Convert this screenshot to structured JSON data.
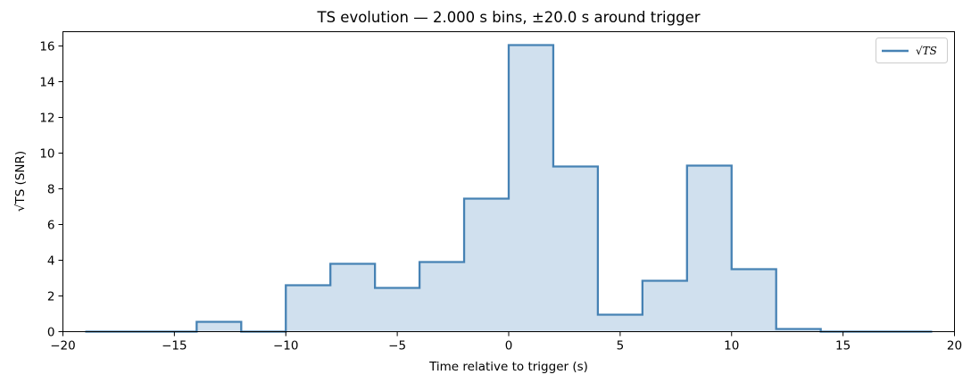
{
  "chart_data": {
    "type": "area",
    "title": "TS evolution — 2.000 s bins, ±20.0 s around trigger",
    "xlabel": "Time relative to trigger  (s)",
    "ylabel": "√TS  (SNR)",
    "xlim": [
      -20,
      20
    ],
    "ylim": [
      0,
      16.8
    ],
    "x_ticks": [
      -20,
      -15,
      -10,
      -5,
      0,
      5,
      10,
      15,
      20
    ],
    "x_tick_labels": [
      "−20",
      "−15",
      "−10",
      "−5",
      "0",
      "5",
      "10",
      "15",
      "20"
    ],
    "y_ticks": [
      0,
      2,
      4,
      6,
      8,
      10,
      12,
      14,
      16
    ],
    "y_tick_labels": [
      "0",
      "2",
      "4",
      "6",
      "8",
      "10",
      "12",
      "14",
      "16"
    ],
    "grid": false,
    "legend_position": "top-right",
    "series": [
      {
        "name": "√TS",
        "color": "#4682b4",
        "fill_color": "#d0e0ee",
        "bin_edges": [
          -19,
          -17,
          -15,
          -14,
          -12,
          -10,
          -8,
          -6,
          -4,
          -2,
          0,
          2,
          4,
          6,
          8,
          10,
          12,
          14,
          16,
          19
        ],
        "bins": [
          {
            "x0": -19,
            "x1": -14,
            "y": 0
          },
          {
            "x0": -14,
            "x1": -12,
            "y": 0.55
          },
          {
            "x0": -12,
            "x1": -10,
            "y": 0
          },
          {
            "x0": -10,
            "x1": -8,
            "y": 2.6
          },
          {
            "x0": -8,
            "x1": -6,
            "y": 3.8
          },
          {
            "x0": -6,
            "x1": -4,
            "y": 2.45
          },
          {
            "x0": -4,
            "x1": -2,
            "y": 3.9
          },
          {
            "x0": -2,
            "x1": 0,
            "y": 7.45
          },
          {
            "x0": 0,
            "x1": 2,
            "y": 16.05
          },
          {
            "x0": 2,
            "x1": 4,
            "y": 9.25
          },
          {
            "x0": 4,
            "x1": 6,
            "y": 0.95
          },
          {
            "x0": 6,
            "x1": 8,
            "y": 2.85
          },
          {
            "x0": 8,
            "x1": 10,
            "y": 9.3
          },
          {
            "x0": 10,
            "x1": 12,
            "y": 3.5
          },
          {
            "x0": 12,
            "x1": 14,
            "y": 0.15
          },
          {
            "x0": 14,
            "x1": 19,
            "y": 0
          }
        ]
      }
    ]
  }
}
